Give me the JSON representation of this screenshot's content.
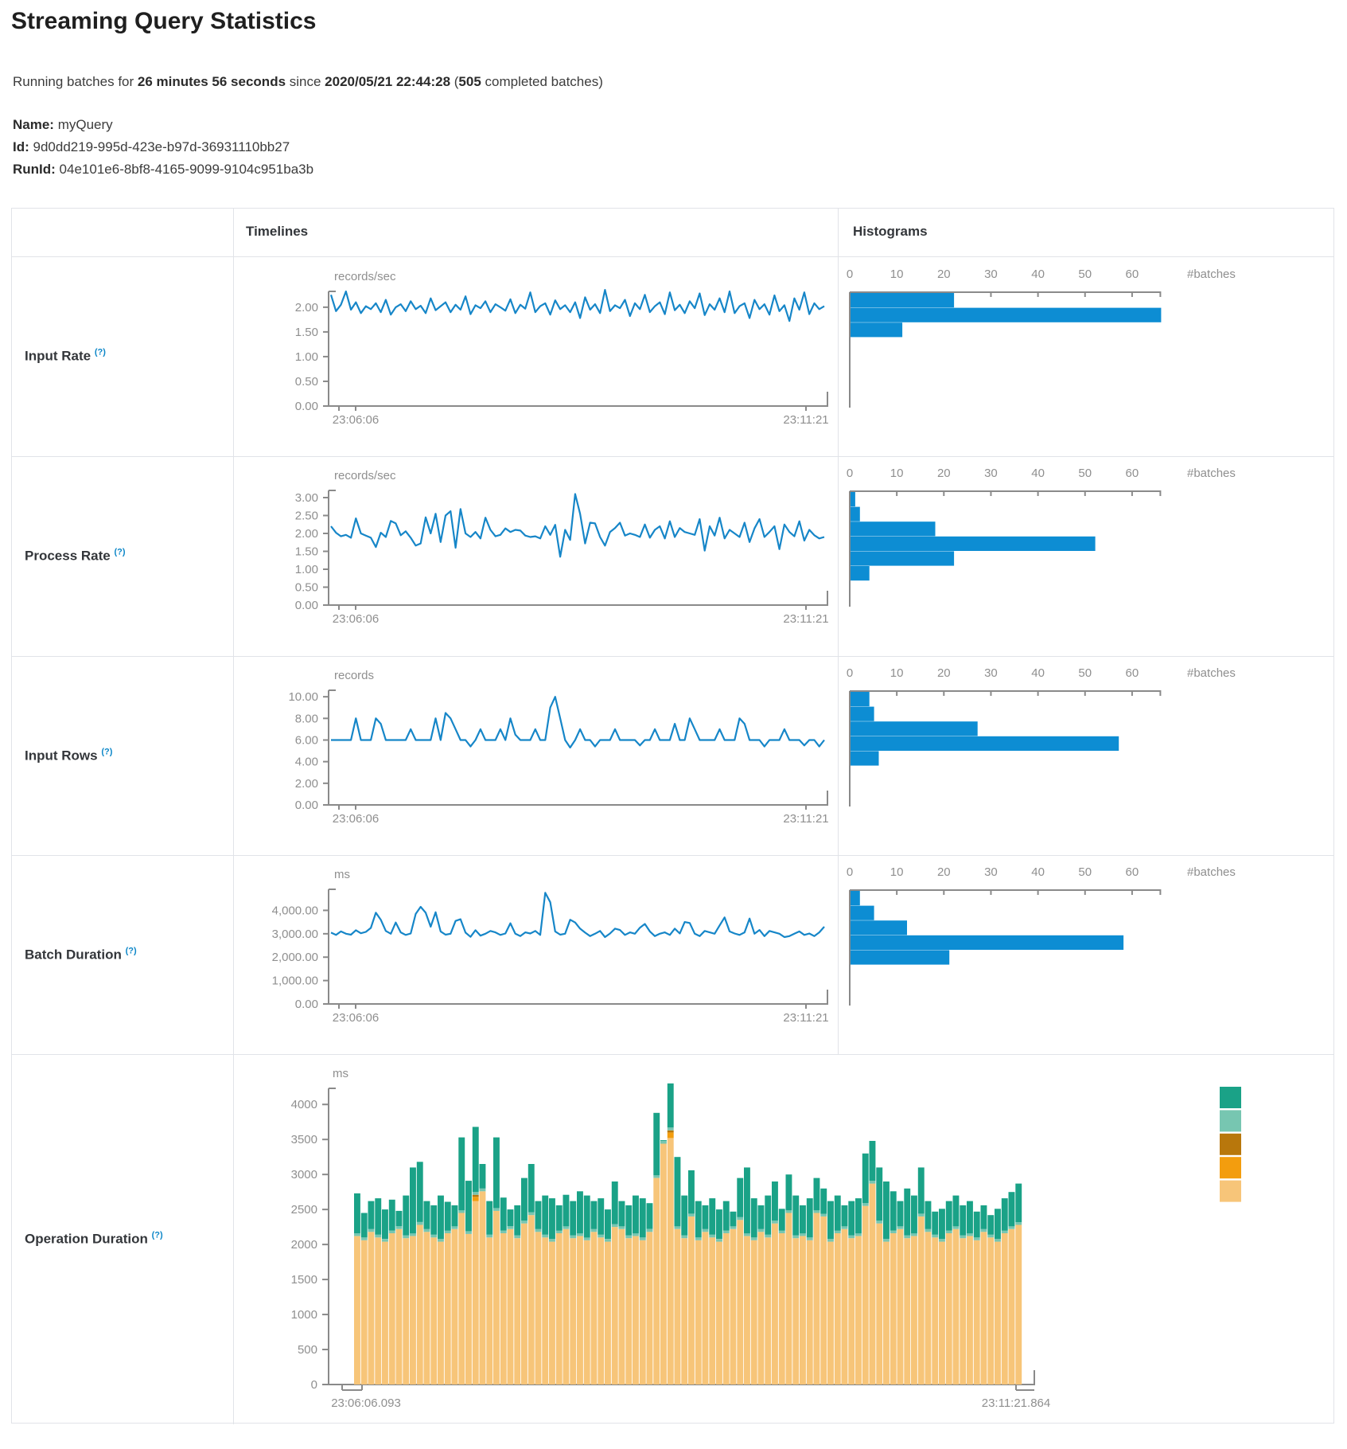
{
  "page": {
    "title": "Streaming Query Statistics",
    "subtitle": {
      "t1": "Running batches for ",
      "duration": "26 minutes 56 seconds",
      "t2": " since ",
      "start_time": "2020/05/21 22:44:28",
      "t3": " (",
      "completed_count": "505",
      "t4": " completed batches)"
    },
    "query": {
      "name_label": "Name:",
      "name": " myQuery",
      "id_label": "Id:",
      "id": " 9d0dd219-995d-423e-b97d-36931110bb27",
      "runid_label": "RunId:",
      "runid": " 04e101e6-8bf8-4165-9099-9104c951ba3b"
    }
  },
  "table": {
    "col_timelines": "Timelines",
    "col_histograms": "Histograms",
    "rows": [
      {
        "label": "Input Rate",
        "help": "(?)"
      },
      {
        "label": "Process Rate",
        "help": "(?)"
      },
      {
        "label": "Input Rows",
        "help": "(?)"
      },
      {
        "label": "Batch Duration",
        "help": "(?)"
      },
      {
        "label": "Operation Duration",
        "help": "(?)"
      }
    ]
  },
  "colors": {
    "line_blue": "#1686c8",
    "hist_blue": "#0d8dd3",
    "axis": "#8a8a8a",
    "tick_text": "#8f8f8f",
    "legend_green": "#1aa287",
    "legend_light_teal": "#77c6b1",
    "legend_dark_gold": "#b8770c",
    "legend_orange": "#f39d0e",
    "legend_tan": "#f7c579"
  },
  "chart_data": [
    {
      "type": "line",
      "metric": "Input Rate",
      "unit": "records/sec",
      "x_start_label": "23:06:06",
      "x_end_label": "23:11:21",
      "y_tick_values": [
        0,
        0.5,
        1,
        1.5,
        2
      ],
      "y_tick_labels": [
        "0.00",
        "0.50",
        "1.00",
        "1.50",
        "2.00"
      ],
      "y_axis_max": 2.32,
      "values": [
        2.25,
        1.92,
        2.05,
        2.32,
        1.95,
        2.1,
        1.88,
        2.02,
        1.96,
        2.08,
        1.9,
        2.15,
        1.85,
        2.0,
        2.06,
        1.92,
        2.12,
        1.96,
        2.03,
        1.88,
        2.18,
        1.94,
        2.02,
        2.1,
        1.9,
        2.05,
        1.95,
        2.22,
        1.86,
        2.04,
        1.98,
        2.12,
        1.9,
        2.06,
        2.0,
        1.93,
        2.16,
        1.88,
        2.05,
        1.97,
        2.3,
        1.9,
        2.02,
        2.08,
        1.85,
        2.14,
        1.96,
        2.04,
        1.9,
        2.1,
        1.78,
        2.2,
        1.95,
        2.06,
        1.88,
        2.35,
        1.92,
        2.04,
        1.98,
        2.15,
        1.82,
        2.08,
        1.96,
        2.25,
        1.9,
        2.02,
        2.1,
        1.86,
        2.3,
        1.94,
        2.05,
        1.88,
        2.12,
        1.98,
        2.28,
        1.84,
        2.06,
        1.95,
        2.18,
        1.9,
        2.32,
        1.88,
        2.02,
        2.08,
        1.78,
        2.15,
        1.96,
        2.06,
        1.85,
        2.24,
        1.92,
        2.04,
        1.72,
        2.18,
        1.95,
        2.3,
        1.86,
        2.08,
        1.96,
        2.02
      ],
      "histogram": {
        "x_tick_values": [
          0,
          10,
          20,
          30,
          40,
          50,
          60
        ],
        "x_tick_labels": [
          "0",
          "10",
          "20",
          "30",
          "40",
          "50",
          "60"
        ],
        "axis_label": "#batches",
        "bins": [
          22,
          66,
          11
        ],
        "axis_max": 66
      }
    },
    {
      "type": "line",
      "metric": "Process Rate",
      "unit": "records/sec",
      "x_start_label": "23:06:06",
      "x_end_label": "23:11:21",
      "y_tick_values": [
        0,
        0.5,
        1,
        1.5,
        2,
        2.5,
        3
      ],
      "y_tick_labels": [
        "0.00",
        "0.50",
        "1.00",
        "1.50",
        "2.00",
        "2.50",
        "3.00"
      ],
      "y_axis_max": 3.2,
      "values": [
        2.2,
        2.02,
        1.92,
        1.96,
        1.88,
        2.42,
        2.0,
        1.94,
        1.88,
        1.62,
        2.02,
        1.9,
        2.35,
        2.28,
        1.95,
        2.06,
        1.88,
        1.66,
        1.72,
        2.45,
        2.0,
        2.55,
        1.76,
        2.5,
        2.62,
        1.6,
        2.68,
        2.0,
        1.9,
        2.04,
        1.86,
        2.44,
        2.1,
        1.92,
        1.96,
        2.14,
        2.04,
        2.1,
        2.08,
        1.94,
        1.9,
        1.92,
        1.86,
        2.2,
        1.96,
        2.24,
        1.35,
        2.1,
        1.82,
        3.1,
        2.55,
        1.72,
        2.3,
        2.28,
        1.9,
        1.66,
        2.04,
        2.15,
        2.3,
        1.94,
        2.0,
        1.96,
        1.9,
        2.25,
        1.88,
        2.1,
        2.2,
        1.86,
        2.34,
        1.9,
        2.15,
        2.04,
        2.0,
        1.96,
        2.4,
        1.52,
        2.2,
        1.94,
        2.44,
        1.86,
        2.1,
        2.0,
        1.9,
        2.3,
        1.76,
        2.14,
        2.4,
        1.9,
        2.04,
        2.2,
        1.56,
        2.25,
        2.04,
        1.92,
        2.34,
        1.8,
        2.1,
        1.95,
        1.86,
        1.9
      ],
      "histogram": {
        "x_tick_values": [
          0,
          10,
          20,
          30,
          40,
          50,
          60
        ],
        "x_tick_labels": [
          "0",
          "10",
          "20",
          "30",
          "40",
          "50",
          "60"
        ],
        "axis_label": "#batches",
        "bins": [
          1,
          2,
          18,
          52,
          22,
          4
        ],
        "axis_max": 66
      }
    },
    {
      "type": "line",
      "metric": "Input Rows",
      "unit": "records",
      "x_start_label": "23:06:06",
      "x_end_label": "23:11:21",
      "y_tick_values": [
        0,
        2,
        4,
        6,
        8,
        10
      ],
      "y_tick_labels": [
        "0.00",
        "2.00",
        "4.00",
        "6.00",
        "8.00",
        "10.00"
      ],
      "y_axis_max": 10.6,
      "values": [
        6,
        6,
        6,
        6,
        6,
        8,
        6,
        6,
        6,
        8,
        7.5,
        6,
        6,
        6,
        6,
        6,
        7,
        6,
        6,
        6,
        6,
        8,
        6,
        8.5,
        8,
        7,
        6,
        6,
        5.4,
        6,
        7,
        6,
        6,
        6,
        7,
        6,
        8,
        6.5,
        6,
        6,
        6,
        7,
        6,
        6,
        9,
        10,
        8,
        6,
        5.3,
        6,
        7,
        6,
        6,
        5.4,
        6,
        6,
        6,
        7,
        6,
        6,
        6,
        6,
        5.5,
        6,
        6,
        7,
        6,
        6,
        6,
        7.5,
        6,
        6,
        8,
        7,
        6,
        6,
        6,
        6,
        7,
        6,
        6,
        6,
        8,
        7.5,
        6,
        6,
        6,
        5.4,
        6,
        6,
        6,
        7,
        6,
        6,
        6,
        5.5,
        6,
        6,
        5.4,
        6
      ],
      "histogram": {
        "x_tick_values": [
          0,
          10,
          20,
          30,
          40,
          50,
          60
        ],
        "x_tick_labels": [
          "0",
          "10",
          "20",
          "30",
          "40",
          "50",
          "60"
        ],
        "axis_label": "#batches",
        "bins": [
          4,
          5,
          27,
          57,
          6
        ],
        "axis_max": 66
      }
    },
    {
      "type": "line",
      "metric": "Batch Duration",
      "unit": "ms",
      "x_start_label": "23:06:06",
      "x_end_label": "23:11:21",
      "y_tick_values": [
        0,
        1000,
        2000,
        3000,
        4000
      ],
      "y_tick_labels": [
        "0.00",
        "1,000.00",
        "2,000.00",
        "3,000.00",
        "4,000.00"
      ],
      "y_axis_max": 4900,
      "values": [
        3050,
        2950,
        3100,
        3000,
        2960,
        3150,
        3020,
        3080,
        3250,
        3900,
        3600,
        3120,
        3000,
        3480,
        3060,
        2950,
        3010,
        3850,
        4150,
        3900,
        3300,
        3920,
        3100,
        2960,
        3000,
        3550,
        3620,
        3050,
        2870,
        3150,
        2920,
        3000,
        3120,
        3060,
        2950,
        3010,
        3450,
        3000,
        2900,
        3060,
        3010,
        3120,
        2950,
        4750,
        4350,
        3100,
        2960,
        3000,
        3600,
        3480,
        3220,
        3050,
        2900,
        3000,
        3120,
        2860,
        3010,
        3220,
        3160,
        2950,
        3060,
        3000,
        3260,
        3420,
        3100,
        2900,
        3000,
        3060,
        2950,
        3220,
        3010,
        3500,
        3460,
        3000,
        2900,
        3120,
        3060,
        3000,
        3360,
        3700,
        3100,
        3010,
        2950,
        3060,
        3650,
        3000,
        3160,
        2900,
        3120,
        3060,
        3000,
        2860,
        2900,
        3000,
        3100,
        2950,
        3010,
        2900,
        3060,
        3300
      ],
      "histogram": {
        "x_tick_values": [
          0,
          10,
          20,
          30,
          40,
          50,
          60
        ],
        "x_tick_labels": [
          "0",
          "10",
          "20",
          "30",
          "40",
          "50",
          "60"
        ],
        "axis_label": "#batches",
        "bins": [
          2,
          5,
          12,
          58,
          21
        ],
        "axis_max": 66
      }
    },
    {
      "type": "stacked-bar",
      "metric": "Operation Duration",
      "unit": "ms",
      "x_start_label": "23:06:06.093",
      "x_end_label": "23:11:21.864",
      "y_tick_values": [
        0,
        500,
        1000,
        1500,
        2000,
        2500,
        3000,
        3500,
        4000
      ],
      "y_tick_labels": [
        "0",
        "500",
        "1000",
        "1500",
        "2000",
        "2500",
        "3000",
        "3500",
        "4000"
      ],
      "y_axis_max": 4230,
      "legend": [
        {
          "name": "teal-green-swatch",
          "color": "#1aa287"
        },
        {
          "name": "light-teal-swatch",
          "color": "#77c6b1"
        },
        {
          "name": "dark-gold-swatch",
          "color": "#b8770c"
        },
        {
          "name": "orange-swatch",
          "color": "#f39d0e"
        },
        {
          "name": "tan-swatch",
          "color": "#f7c579"
        }
      ],
      "series": [
        {
          "name": "tan",
          "color": "#f7c579",
          "values": [
            2120,
            2060,
            2180,
            2100,
            2040,
            2160,
            2220,
            2090,
            2120,
            2280,
            2180,
            2100,
            2040,
            2160,
            2220,
            2450,
            2150,
            2620,
            2760,
            2100,
            2480,
            2160,
            2220,
            2090,
            2300,
            2420,
            2180,
            2100,
            2040,
            2160,
            2220,
            2090,
            2120,
            2060,
            2180,
            2100,
            2040,
            2250,
            2220,
            2090,
            2120,
            2060,
            2180,
            2950,
            3440,
            3520,
            2220,
            2090,
            2400,
            2060,
            2180,
            2100,
            2040,
            2160,
            2220,
            2350,
            2120,
            2060,
            2180,
            2100,
            2300,
            2160,
            2450,
            2090,
            2120,
            2060,
            2450,
            2400,
            2040,
            2160,
            2220,
            2090,
            2120,
            2550,
            2870,
            2300,
            2040,
            2160,
            2220,
            2090,
            2120,
            2400,
            2180,
            2100,
            2040,
            2160,
            2220,
            2090,
            2120,
            2060,
            2180,
            2100,
            2040,
            2160,
            2220,
            2280
          ]
        },
        {
          "name": "orange",
          "color": "#f39d0e",
          "const": 0,
          "overrides": {
            "17": 60,
            "45": 80
          }
        },
        {
          "name": "dark-gold",
          "color": "#b8770c",
          "const": 0,
          "overrides": {
            "17": 30,
            "45": 30
          }
        },
        {
          "name": "light-teal",
          "color": "#77c6b1",
          "const": 40
        },
        {
          "name": "teal-green",
          "color": "#1aa287",
          "values": [
            570,
            350,
            400,
            520,
            420,
            440,
            220,
            570,
            940,
            860,
            400,
            420,
            620,
            410,
            300,
            1040,
            720,
            930,
            350,
            480,
            1010,
            470,
            240,
            430,
            610,
            690,
            400,
            560,
            580,
            360,
            450,
            490,
            600,
            600,
            400,
            520,
            420,
            610,
            360,
            430,
            540,
            560,
            370,
            890,
            10,
            630,
            990,
            570,
            620,
            520,
            340,
            520,
            420,
            420,
            210,
            560,
            940,
            560,
            340,
            560,
            560,
            310,
            510,
            570,
            400,
            560,
            460,
            360,
            540,
            500,
            300,
            490,
            500,
            710,
            570,
            760,
            820,
            560,
            360,
            670,
            540,
            660,
            400,
            330,
            430,
            420,
            440,
            430,
            460,
            370,
            340,
            280,
            430,
            460,
            490,
            550
          ]
        }
      ]
    }
  ]
}
